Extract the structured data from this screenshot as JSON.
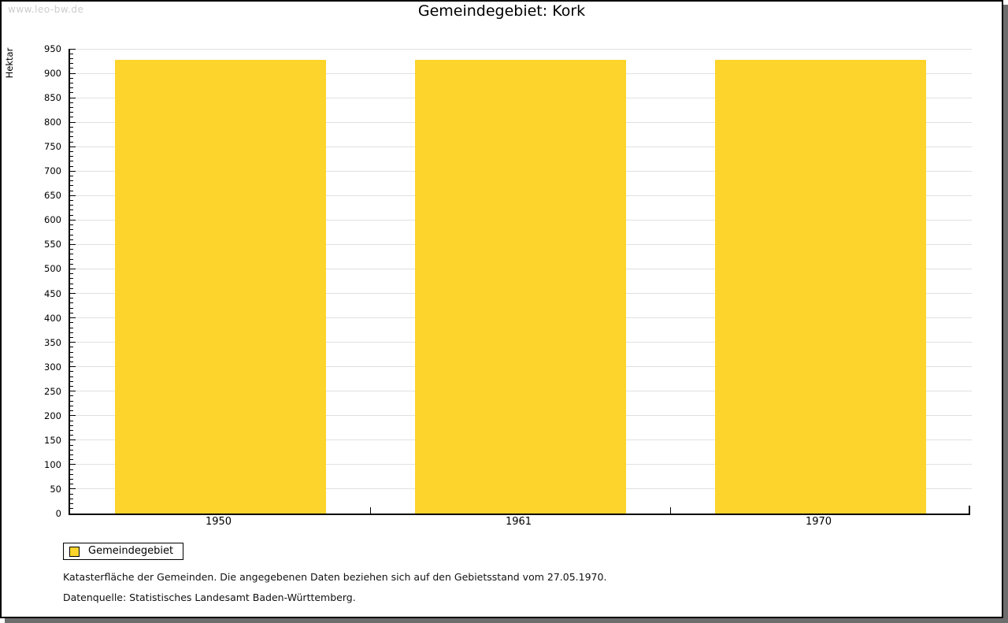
{
  "page": {
    "watermark": "www.leo-bw.de",
    "title": "Gemeindegebiet: Kork"
  },
  "chart_data": {
    "type": "bar",
    "title": "Gemeindegebiet: Kork",
    "categories": [
      "1950",
      "1961",
      "1970"
    ],
    "series": [
      {
        "name": "Gemeindegebiet",
        "values": [
          928,
          928,
          928
        ]
      }
    ],
    "xlabel": "",
    "ylabel": "Hektar",
    "ylim": [
      0,
      950
    ],
    "ytick_major_step": 50,
    "ytick_minor_step": 10,
    "grid": "horizontal-major",
    "legend_position": "bottom-left",
    "bar_color": "#fcd42c",
    "gridline_color": "#e0e0e0"
  },
  "legend": {
    "items": [
      {
        "label": "Gemeindegebiet",
        "color": "#fcd42c"
      }
    ]
  },
  "footer": {
    "line1": "Katasterfläche der Gemeinden. Die angegebenen Daten beziehen sich auf den Gebietsstand vom 27.05.1970.",
    "line2": "Datenquelle: Statistisches Landesamt Baden-Württemberg."
  }
}
